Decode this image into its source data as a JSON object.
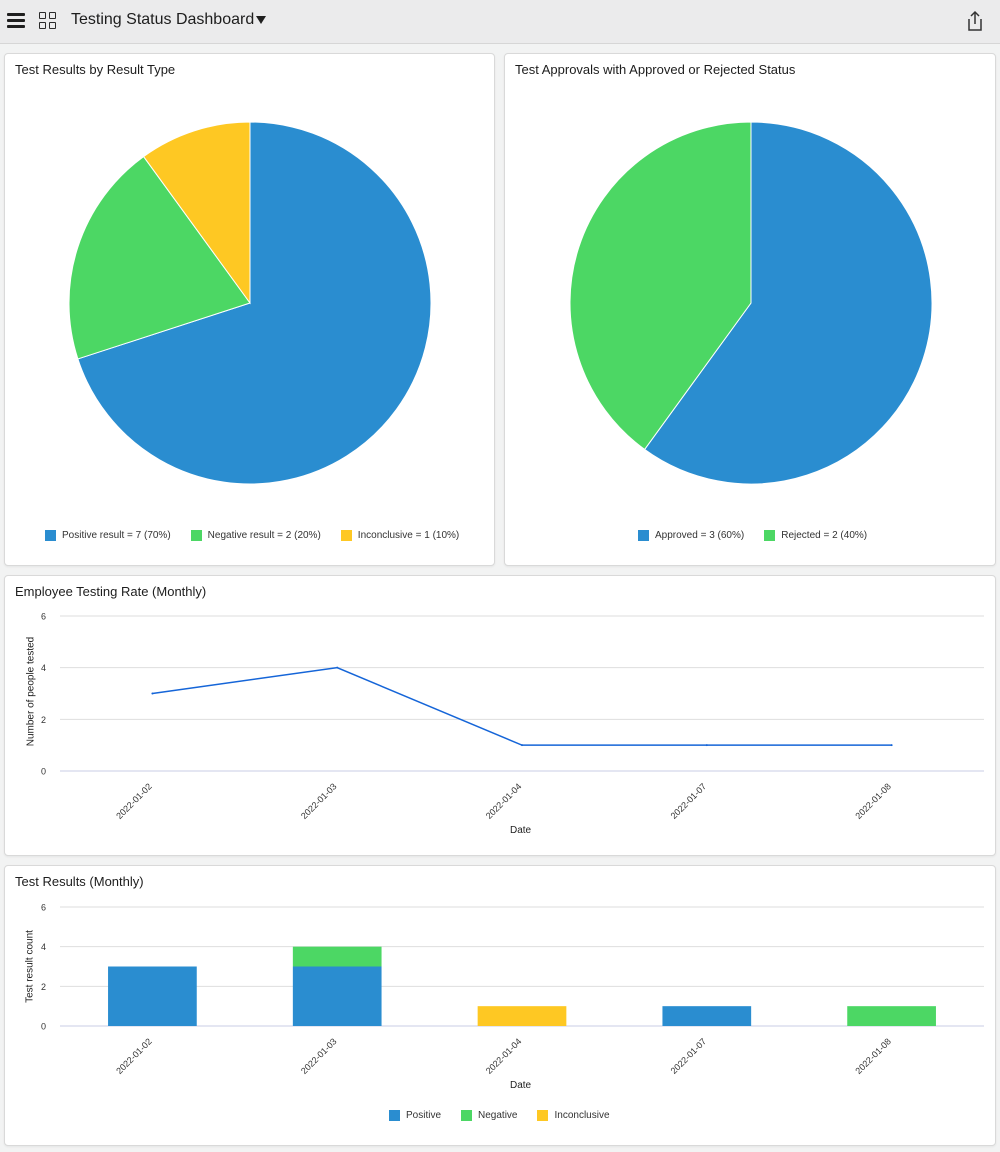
{
  "header": {
    "title": "Testing Status Dashboard",
    "menu_icon": "hamburger-menu-icon",
    "apps_icon": "grid-icon",
    "dropdown_icon": "caret-down-icon",
    "share_icon": "share-icon"
  },
  "colors": {
    "blue": "#2a8dd0",
    "green": "#4cd764",
    "yellow": "#fec823",
    "line": "#1565d8"
  },
  "charts": {
    "result_type": {
      "title": "Test Results by Result Type",
      "legend": [
        "Positive result = 7 (70%)",
        "Negative result = 2 (20%)",
        "Inconclusive = 1 (10%)"
      ]
    },
    "approvals": {
      "title": "Test Approvals with Approved or Rejected Status",
      "legend": [
        "Approved = 3 (60%)",
        "Rejected = 2 (40%)"
      ]
    },
    "testing_rate": {
      "title": "Employee Testing Rate (Monthly)"
    },
    "test_results": {
      "title": "Test Results (Monthly)",
      "legend": [
        "Positive",
        "Negative",
        "Inconclusive"
      ]
    }
  },
  "chart_data": [
    {
      "type": "pie",
      "title": "Test Results by Result Type",
      "categories": [
        "Positive result",
        "Negative result",
        "Inconclusive"
      ],
      "values": [
        7,
        2,
        1
      ],
      "legend": "bottom"
    },
    {
      "type": "pie",
      "title": "Test Approvals with Approved or Rejected Status",
      "categories": [
        "Approved",
        "Rejected"
      ],
      "values": [
        3,
        2
      ],
      "legend": "bottom"
    },
    {
      "type": "line",
      "title": "Employee Testing Rate (Monthly)",
      "categories": [
        "2022-01-02",
        "2022-01-03",
        "2022-01-04",
        "2022-01-07",
        "2022-01-08"
      ],
      "values": [
        3,
        4,
        1,
        1,
        1
      ],
      "xlabel": "Date",
      "ylabel": "Number of people tested",
      "ylim": [
        0,
        6
      ],
      "yticks": [
        0,
        2,
        4,
        6
      ],
      "grid": true
    },
    {
      "type": "bar",
      "stacked": true,
      "title": "Test Results (Monthly)",
      "categories": [
        "2022-01-02",
        "2022-01-03",
        "2022-01-04",
        "2022-01-07",
        "2022-01-08"
      ],
      "series": [
        {
          "name": "Positive",
          "values": [
            3,
            3,
            0,
            1,
            0
          ]
        },
        {
          "name": "Negative",
          "values": [
            0,
            1,
            0,
            0,
            1
          ]
        },
        {
          "name": "Inconclusive",
          "values": [
            0,
            0,
            1,
            0,
            0
          ]
        }
      ],
      "xlabel": "Date",
      "ylabel": "Test result count",
      "ylim": [
        0,
        6
      ],
      "yticks": [
        0,
        2,
        4,
        6
      ],
      "grid": true,
      "legend": "bottom"
    }
  ]
}
